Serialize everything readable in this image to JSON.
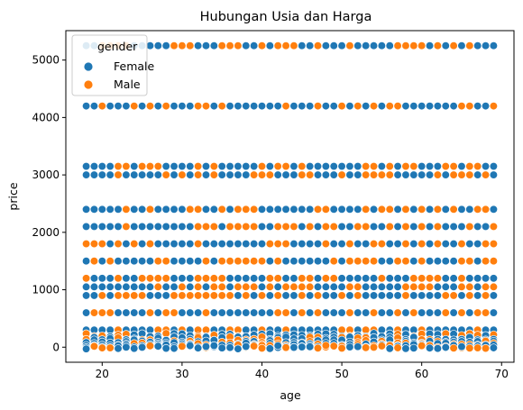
{
  "chart_data": {
    "type": "scatter",
    "title": "Hubungan Usia dan Harga",
    "xlabel": "age",
    "ylabel": "price",
    "xlim": [
      15.45,
      71.55
    ],
    "ylim": [
      -262.5,
      5512.5
    ],
    "xticks": [
      20,
      30,
      40,
      50,
      60,
      70
    ],
    "yticks": [
      0,
      1000,
      2000,
      3000,
      4000,
      5000
    ],
    "grid": false,
    "legend": {
      "title": "gender",
      "placement": "top-left",
      "entries": [
        "Female",
        "Male"
      ]
    },
    "x_range": [
      18,
      69
    ],
    "price_levels": [
      5250,
      4200,
      3150,
      3000,
      2400,
      2100,
      1800,
      1500,
      1200,
      1050,
      900,
      600,
      300,
      210,
      150,
      100,
      50,
      20,
      0
    ],
    "series": [
      {
        "name": "Female",
        "color": "#1f77b4"
      },
      {
        "name": "Male",
        "color": "#ff7f0e"
      }
    ]
  }
}
